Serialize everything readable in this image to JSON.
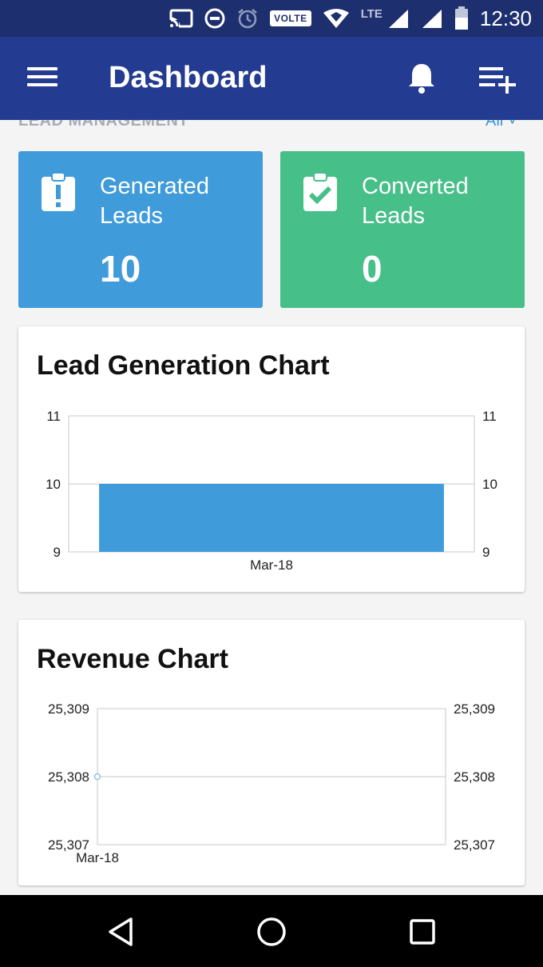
{
  "status_bar": {
    "time": "12:30",
    "volte": "VOLTE",
    "network": "LTE",
    "icons": [
      "cast-icon",
      "do-not-disturb-icon",
      "alarm-icon",
      "volte-icon",
      "data-icon",
      "signal-icon",
      "signal-icon",
      "battery-icon"
    ]
  },
  "app_bar": {
    "title": "Dashboard",
    "icons": [
      "menu-icon",
      "bell-icon",
      "playlist-add-icon"
    ]
  },
  "section": {
    "label": "LEAD MANAGEMENT",
    "filter_value": "All"
  },
  "cards": {
    "generated": {
      "label": "Generated Leads",
      "value": "10",
      "color": "#3f9bd9",
      "icon": "clipboard-alert-icon"
    },
    "converted": {
      "label": "Converted Leads",
      "value": "0",
      "color": "#47bf89",
      "icon": "clipboard-check-icon"
    }
  },
  "chart_data": [
    {
      "type": "bar",
      "title": "Lead Generation Chart",
      "categories": [
        "Mar-18"
      ],
      "values": [
        10
      ],
      "ylim": [
        9,
        11
      ],
      "yticks": [
        "11",
        "10",
        "9"
      ],
      "color": "#3f9bd9",
      "grid": true
    },
    {
      "type": "line",
      "title": "Revenue Chart",
      "categories": [
        "Mar-18"
      ],
      "values": [
        25308
      ],
      "ylim": [
        25307,
        25309
      ],
      "yticks": [
        "25,309",
        "25,308",
        "25,307"
      ],
      "color": "#a9cfe8",
      "grid": true
    }
  ],
  "nav_bar": {
    "icons": [
      "back-icon",
      "home-icon",
      "recents-icon"
    ]
  }
}
